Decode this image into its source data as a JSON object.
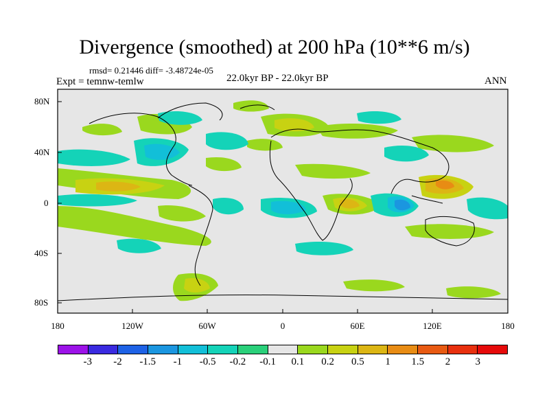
{
  "title": "Divergence (smoothed) at 200 hPa (10**6 m/s)",
  "stats": "rmsd= 0.21446  diff= -3.48724e-05",
  "expt": "Expt = temnw-temlw",
  "period": "22.0kyr BP - 22.0kyr BP",
  "season": "ANN",
  "lat_labels": [
    "80N",
    "40N",
    "0",
    "40S",
    "80S"
  ],
  "lon_labels": [
    "180",
    "120W",
    "60W",
    "0",
    "60E",
    "120E",
    "180"
  ],
  "colorbar": {
    "colors": [
      "#9c12e8",
      "#3a2ae0",
      "#1e62e6",
      "#1b96e0",
      "#12bfd8",
      "#14d3b8",
      "#2ad07a",
      "#e6e6e6",
      "#9ad81e",
      "#c8d212",
      "#dcb614",
      "#e88c14",
      "#e85a12",
      "#e8300e",
      "#e60a0a"
    ],
    "labels": [
      "-3",
      "-2",
      "-1.5",
      "-1",
      "-0.5",
      "-0.2",
      "-0.1",
      "0.1",
      "0.2",
      "0.5",
      "1",
      "1.5",
      "2",
      "3"
    ]
  }
}
